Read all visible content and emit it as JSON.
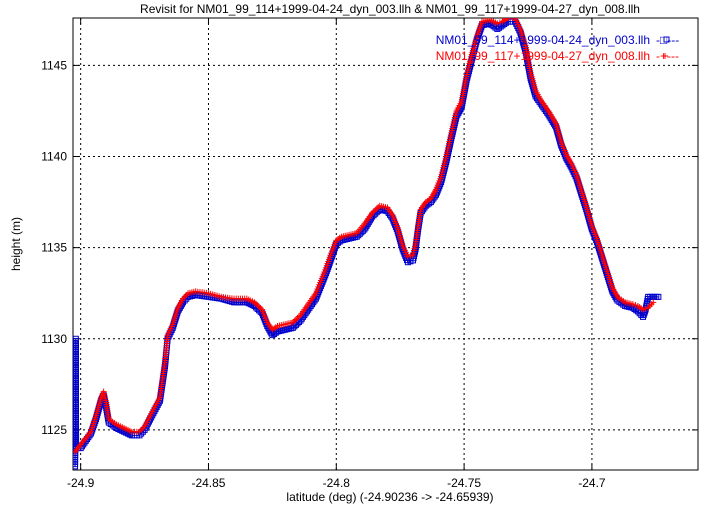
{
  "chart_data": {
    "type": "line",
    "title": "Revisit for NM01_99_114+1999-04-24_dyn_003.llh & NM01_99_117+1999-04-27_dyn_008.llh",
    "xlabel": "latitude (deg) (-24.90236 -> -24.65939)",
    "ylabel": "height (m)",
    "xlim": [
      -24.903,
      -24.6585
    ],
    "ylim": [
      1122.8,
      1147.6
    ],
    "xticks": [
      -24.9,
      -24.85,
      -24.8,
      -24.75,
      -24.7
    ],
    "yticks": [
      1125,
      1130,
      1135,
      1140,
      1145
    ],
    "grid": true,
    "legend_position": "top-right",
    "series": [
      {
        "name": "NM01_99_114+1999-04-24_dyn_003.llh",
        "legend_style": "-□---",
        "color": "#0000cc",
        "marker": "square",
        "points": [
          [
            -24.9022,
            1123.0
          ],
          [
            -24.902,
            1125.8
          ],
          [
            -24.9019,
            1130.0
          ],
          [
            -24.9018,
            1124.0
          ],
          [
            -24.9,
            1124.0
          ],
          [
            -24.896,
            1124.8
          ],
          [
            -24.894,
            1125.6
          ],
          [
            -24.892,
            1126.6
          ],
          [
            -24.891,
            1126.9
          ],
          [
            -24.89,
            1126.2
          ],
          [
            -24.889,
            1125.4
          ],
          [
            -24.886,
            1125.1
          ],
          [
            -24.883,
            1124.9
          ],
          [
            -24.88,
            1124.7
          ],
          [
            -24.877,
            1124.7
          ],
          [
            -24.875,
            1125.0
          ],
          [
            -24.872,
            1125.8
          ],
          [
            -24.869,
            1126.6
          ],
          [
            -24.867,
            1128.5
          ],
          [
            -24.866,
            1130.0
          ],
          [
            -24.864,
            1130.6
          ],
          [
            -24.862,
            1131.5
          ],
          [
            -24.86,
            1132.0
          ],
          [
            -24.858,
            1132.3
          ],
          [
            -24.855,
            1132.4
          ],
          [
            -24.85,
            1132.3
          ],
          [
            -24.845,
            1132.2
          ],
          [
            -24.84,
            1132.0
          ],
          [
            -24.835,
            1132.0
          ],
          [
            -24.832,
            1131.8
          ],
          [
            -24.829,
            1131.4
          ],
          [
            -24.827,
            1130.7
          ],
          [
            -24.825,
            1130.2
          ],
          [
            -24.823,
            1130.4
          ],
          [
            -24.82,
            1130.5
          ],
          [
            -24.817,
            1130.6
          ],
          [
            -24.814,
            1131.0
          ],
          [
            -24.811,
            1131.6
          ],
          [
            -24.808,
            1132.2
          ],
          [
            -24.806,
            1132.9
          ],
          [
            -24.804,
            1133.6
          ],
          [
            -24.802,
            1134.4
          ],
          [
            -24.8,
            1135.2
          ],
          [
            -24.798,
            1135.4
          ],
          [
            -24.795,
            1135.5
          ],
          [
            -24.792,
            1135.6
          ],
          [
            -24.789,
            1136.0
          ],
          [
            -24.786,
            1136.7
          ],
          [
            -24.783,
            1137.1
          ],
          [
            -24.78,
            1137.0
          ],
          [
            -24.778,
            1136.6
          ],
          [
            -24.776,
            1135.9
          ],
          [
            -24.774,
            1134.9
          ],
          [
            -24.772,
            1134.2
          ],
          [
            -24.77,
            1134.3
          ],
          [
            -24.769,
            1134.9
          ],
          [
            -24.768,
            1136.0
          ],
          [
            -24.767,
            1136.9
          ],
          [
            -24.765,
            1137.3
          ],
          [
            -24.763,
            1137.5
          ],
          [
            -24.761,
            1137.9
          ],
          [
            -24.759,
            1138.6
          ],
          [
            -24.757,
            1139.7
          ],
          [
            -24.755,
            1141.0
          ],
          [
            -24.753,
            1142.2
          ],
          [
            -24.751,
            1142.7
          ],
          [
            -24.749,
            1144.2
          ],
          [
            -24.747,
            1145.3
          ],
          [
            -24.745,
            1146.4
          ],
          [
            -24.743,
            1147.2
          ],
          [
            -24.74,
            1147.3
          ],
          [
            -24.737,
            1147.0
          ],
          [
            -24.735,
            1147.2
          ],
          [
            -24.733,
            1147.4
          ],
          [
            -24.73,
            1147.4
          ],
          [
            -24.728,
            1146.8
          ],
          [
            -24.726,
            1145.8
          ],
          [
            -24.724,
            1144.3
          ],
          [
            -24.722,
            1143.3
          ],
          [
            -24.72,
            1142.9
          ],
          [
            -24.717,
            1142.3
          ],
          [
            -24.714,
            1141.6
          ],
          [
            -24.712,
            1140.6
          ],
          [
            -24.71,
            1139.9
          ],
          [
            -24.708,
            1139.4
          ],
          [
            -24.706,
            1138.8
          ],
          [
            -24.704,
            1137.9
          ],
          [
            -24.702,
            1137.0
          ],
          [
            -24.7,
            1136.0
          ],
          [
            -24.698,
            1135.3
          ],
          [
            -24.696,
            1134.4
          ],
          [
            -24.694,
            1133.5
          ],
          [
            -24.692,
            1132.6
          ],
          [
            -24.69,
            1132.1
          ],
          [
            -24.687,
            1131.8
          ],
          [
            -24.684,
            1131.7
          ],
          [
            -24.682,
            1131.5
          ],
          [
            -24.68,
            1131.2
          ],
          [
            -24.679,
            1131.6
          ],
          [
            -24.678,
            1132.3
          ],
          [
            -24.674,
            1132.3
          ]
        ]
      },
      {
        "name": "NM01_99_117+1999-04-27_dyn_008.llh",
        "legend_style": "-+---",
        "color": "#ff0000",
        "marker": "plus",
        "points": [
          [
            -24.9022,
            1123.8
          ],
          [
            -24.9,
            1124.2
          ],
          [
            -24.896,
            1124.9
          ],
          [
            -24.894,
            1125.8
          ],
          [
            -24.892,
            1126.8
          ],
          [
            -24.891,
            1127.1
          ],
          [
            -24.89,
            1126.5
          ],
          [
            -24.889,
            1125.6
          ],
          [
            -24.886,
            1125.3
          ],
          [
            -24.883,
            1125.1
          ],
          [
            -24.88,
            1124.9
          ],
          [
            -24.877,
            1124.9
          ],
          [
            -24.875,
            1125.2
          ],
          [
            -24.872,
            1126.0
          ],
          [
            -24.869,
            1126.8
          ],
          [
            -24.867,
            1128.8
          ],
          [
            -24.866,
            1130.2
          ],
          [
            -24.864,
            1130.8
          ],
          [
            -24.862,
            1131.7
          ],
          [
            -24.86,
            1132.2
          ],
          [
            -24.858,
            1132.5
          ],
          [
            -24.855,
            1132.6
          ],
          [
            -24.85,
            1132.5
          ],
          [
            -24.845,
            1132.3
          ],
          [
            -24.84,
            1132.2
          ],
          [
            -24.835,
            1132.2
          ],
          [
            -24.832,
            1132.0
          ],
          [
            -24.829,
            1131.6
          ],
          [
            -24.827,
            1130.9
          ],
          [
            -24.825,
            1130.5
          ],
          [
            -24.823,
            1130.7
          ],
          [
            -24.82,
            1130.8
          ],
          [
            -24.817,
            1130.9
          ],
          [
            -24.814,
            1131.3
          ],
          [
            -24.811,
            1131.9
          ],
          [
            -24.808,
            1132.5
          ],
          [
            -24.806,
            1133.2
          ],
          [
            -24.804,
            1133.9
          ],
          [
            -24.802,
            1134.7
          ],
          [
            -24.8,
            1135.4
          ],
          [
            -24.798,
            1135.6
          ],
          [
            -24.795,
            1135.7
          ],
          [
            -24.792,
            1135.8
          ],
          [
            -24.789,
            1136.3
          ],
          [
            -24.786,
            1136.9
          ],
          [
            -24.783,
            1137.3
          ],
          [
            -24.78,
            1137.2
          ],
          [
            -24.778,
            1136.8
          ],
          [
            -24.776,
            1136.1
          ],
          [
            -24.774,
            1135.1
          ],
          [
            -24.772,
            1134.5
          ],
          [
            -24.77,
            1134.6
          ],
          [
            -24.769,
            1135.2
          ],
          [
            -24.768,
            1136.2
          ],
          [
            -24.767,
            1137.1
          ],
          [
            -24.765,
            1137.5
          ],
          [
            -24.763,
            1137.7
          ],
          [
            -24.761,
            1138.2
          ],
          [
            -24.759,
            1138.9
          ],
          [
            -24.757,
            1140.0
          ],
          [
            -24.755,
            1141.3
          ],
          [
            -24.753,
            1142.5
          ],
          [
            -24.751,
            1143.0
          ],
          [
            -24.749,
            1144.5
          ],
          [
            -24.747,
            1145.6
          ],
          [
            -24.745,
            1146.6
          ],
          [
            -24.743,
            1147.4
          ],
          [
            -24.74,
            1147.5
          ],
          [
            -24.737,
            1147.3
          ],
          [
            -24.735,
            1147.4
          ],
          [
            -24.733,
            1147.6
          ],
          [
            -24.73,
            1147.6
          ],
          [
            -24.728,
            1147.0
          ],
          [
            -24.726,
            1146.1
          ],
          [
            -24.724,
            1144.6
          ],
          [
            -24.722,
            1143.6
          ],
          [
            -24.72,
            1143.1
          ],
          [
            -24.717,
            1142.5
          ],
          [
            -24.714,
            1141.8
          ],
          [
            -24.712,
            1140.8
          ],
          [
            -24.71,
            1140.1
          ],
          [
            -24.708,
            1139.6
          ],
          [
            -24.706,
            1139.0
          ],
          [
            -24.704,
            1138.1
          ],
          [
            -24.702,
            1137.2
          ],
          [
            -24.7,
            1136.2
          ],
          [
            -24.698,
            1135.5
          ],
          [
            -24.696,
            1134.6
          ],
          [
            -24.694,
            1133.7
          ],
          [
            -24.692,
            1132.8
          ],
          [
            -24.69,
            1132.3
          ],
          [
            -24.687,
            1132.0
          ],
          [
            -24.684,
            1131.9
          ],
          [
            -24.682,
            1131.8
          ],
          [
            -24.68,
            1131.6
          ],
          [
            -24.678,
            1131.7
          ],
          [
            -24.676,
            1132.0
          ]
        ]
      }
    ]
  }
}
